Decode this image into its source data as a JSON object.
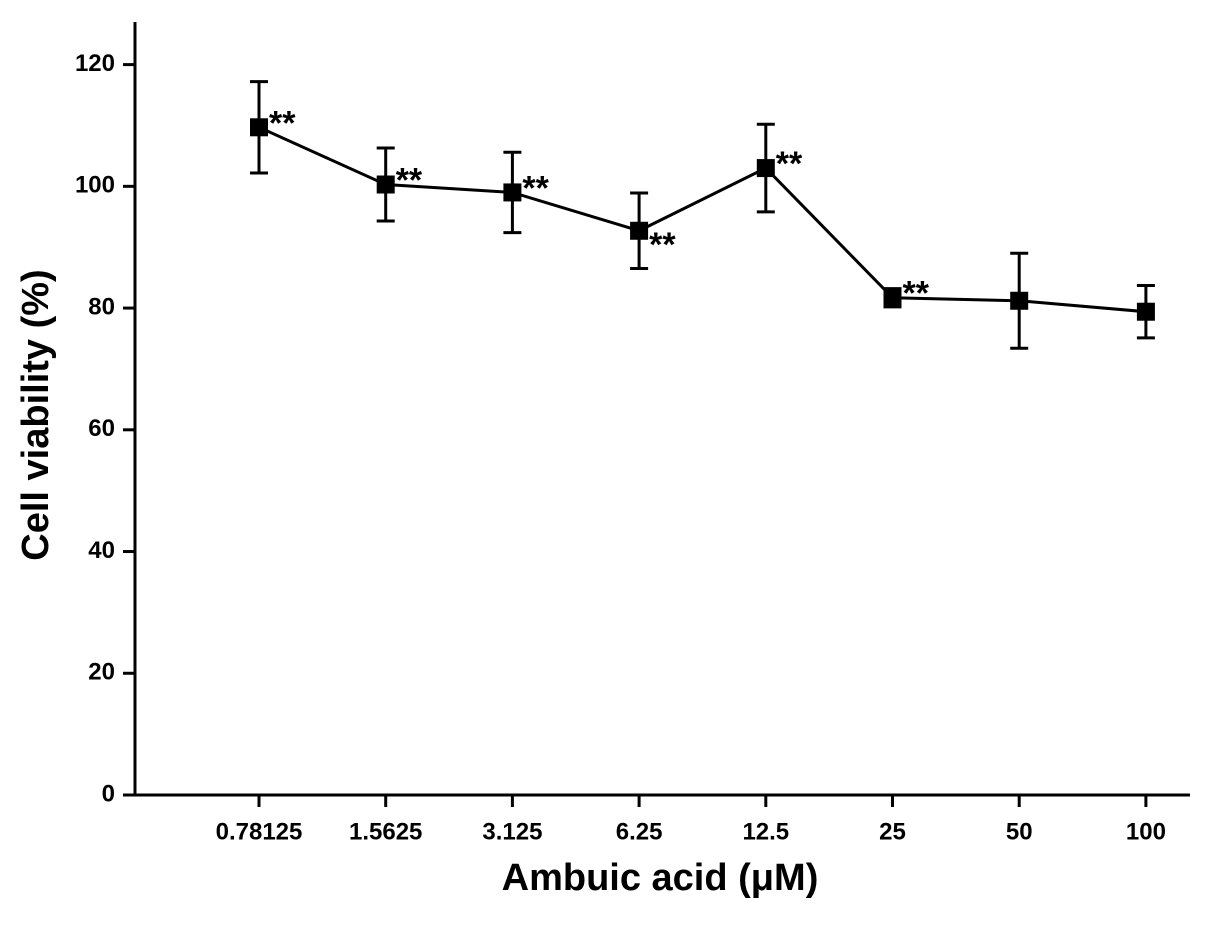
{
  "chart_data": {
    "type": "line",
    "x_label": "Ambuic acid (μM)",
    "y_label": "Cell viability (%)",
    "categories": [
      "0.78125",
      "1.5625",
      "3.125",
      "6.25",
      "12.5",
      "25",
      "50",
      "100"
    ],
    "series": [
      {
        "color": "#000000",
        "values": [
          109.7,
          100.3,
          99.0,
          92.7,
          103.0,
          81.7,
          81.2,
          79.4
        ],
        "errors": [
          7.5,
          6.0,
          6.6,
          6.2,
          7.2,
          1.5,
          7.8,
          4.3
        ],
        "annotations": [
          "**",
          "**",
          "**",
          "**",
          "**",
          "**",
          null,
          null
        ]
      }
    ],
    "ylim": [
      0,
      127
    ],
    "yticks": [
      0,
      20,
      40,
      60,
      80,
      100,
      120
    ],
    "grid": false
  }
}
